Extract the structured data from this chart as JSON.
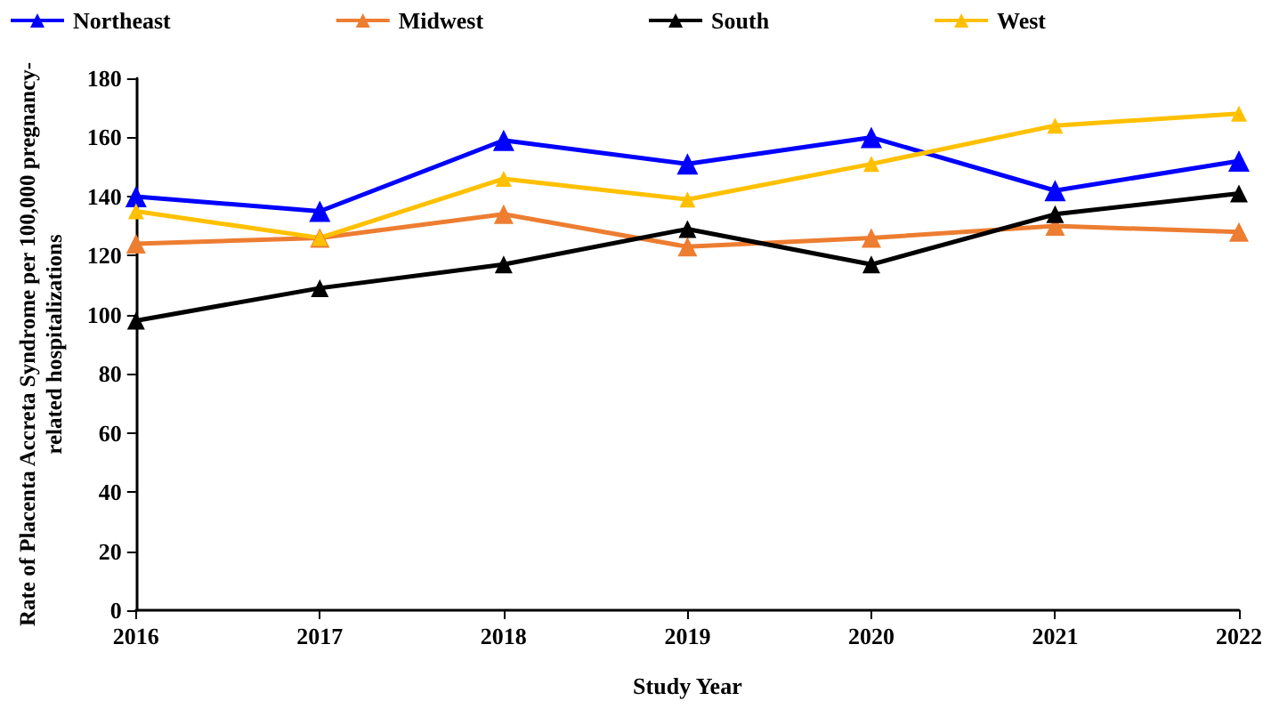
{
  "chart_data": {
    "type": "line",
    "xlabel": "Study Year",
    "ylabel": "Rate of Placenta Accreta Syndrome per 100,000 pregnancy-\nrelated hospitalizations",
    "categories": [
      "2016",
      "2017",
      "2018",
      "2019",
      "2020",
      "2021",
      "2022"
    ],
    "series": [
      {
        "name": "Northeast",
        "color": "#0000ff",
        "values": [
          140,
          135,
          159,
          151,
          160,
          142,
          152
        ]
      },
      {
        "name": "Midwest",
        "color": "#ed7d31",
        "values": [
          124,
          126,
          134,
          123,
          126,
          130,
          128
        ]
      },
      {
        "name": "South",
        "color": "#000000",
        "values": [
          98,
          109,
          117,
          129,
          117,
          134,
          141
        ]
      },
      {
        "name": "West",
        "color": "#ffc000",
        "values": [
          135,
          126,
          146,
          139,
          151,
          164,
          168
        ]
      }
    ],
    "ylim": [
      0,
      180
    ],
    "yticks": [
      0,
      20,
      40,
      60,
      80,
      100,
      120,
      140,
      160,
      180
    ],
    "grid": false,
    "legend": "top",
    "marker": "triangle",
    "line_style": "solid"
  }
}
